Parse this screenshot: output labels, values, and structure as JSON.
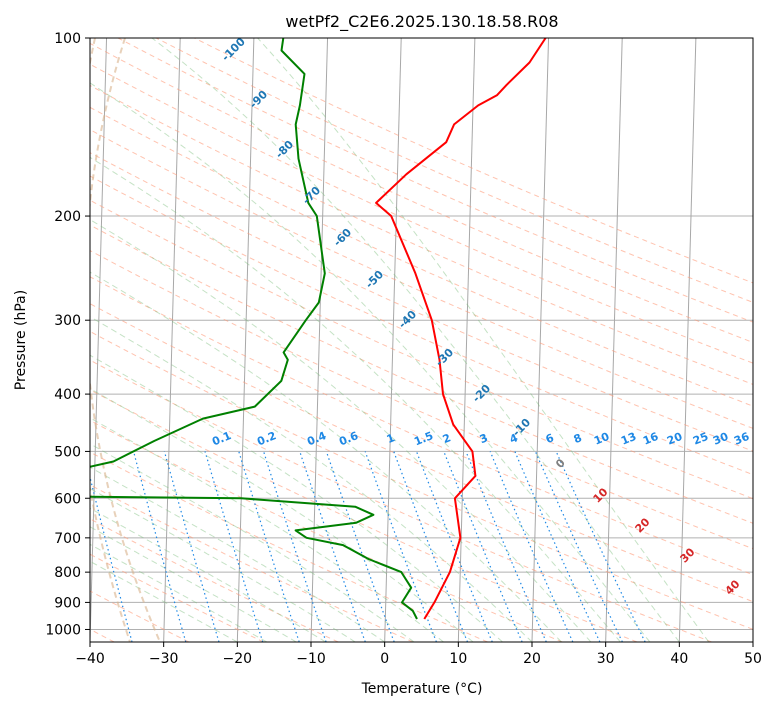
{
  "chart_data": {
    "type": "line",
    "chart_kind": "skew-t log-p",
    "title": "wetPf2_C2E6.2025.130.18.58.R08",
    "xlabel": "Temperature (°C)",
    "ylabel": "Pressure (hPa)",
    "xlim": [
      -40,
      50
    ],
    "ylim": [
      1050,
      100
    ],
    "y_scale": "log",
    "grid": true,
    "x_ticks": [
      -40,
      -30,
      -20,
      -10,
      0,
      10,
      20,
      30,
      40,
      50
    ],
    "y_ticks": [
      100,
      200,
      300,
      400,
      500,
      600,
      700,
      800,
      900,
      1000
    ],
    "series": [
      {
        "color": "#ff0000",
        "points": [
          [
            19.6,
            100
          ],
          [
            17.5,
            110
          ],
          [
            14.5,
            120
          ],
          [
            13.2,
            125
          ],
          [
            10.7,
            130
          ],
          [
            7.5,
            140
          ],
          [
            6.5,
            150
          ],
          [
            1.2,
            170
          ],
          [
            -2.8,
            190
          ],
          [
            -0.7,
            200
          ],
          [
            2.8,
            250
          ],
          [
            5.2,
            300
          ],
          [
            6.4,
            350
          ],
          [
            7.0,
            400
          ],
          [
            8.5,
            450
          ],
          [
            11.2,
            500
          ],
          [
            11.7,
            550
          ],
          [
            9.0,
            600
          ],
          [
            9.9,
            700
          ],
          [
            8.6,
            800
          ],
          [
            6.6,
            900
          ],
          [
            5.3,
            960
          ]
        ]
      },
      {
        "color": "#008000",
        "points": [
          [
            -16.0,
            100
          ],
          [
            -16.2,
            105
          ],
          [
            -13.0,
            115
          ],
          [
            -13.5,
            130
          ],
          [
            -14.0,
            140
          ],
          [
            -13.5,
            160
          ],
          [
            -12.0,
            190
          ],
          [
            -10.8,
            200
          ],
          [
            -9.5,
            250
          ],
          [
            -10.2,
            280
          ],
          [
            -11.9,
            300
          ],
          [
            -14.8,
            340
          ],
          [
            -14.2,
            350
          ],
          [
            -15.0,
            380
          ],
          [
            -18.5,
            420
          ],
          [
            -25.5,
            440
          ],
          [
            -32.0,
            480
          ],
          [
            -37.5,
            520
          ],
          [
            -49.0,
            560
          ],
          [
            -74.0,
            580
          ],
          [
            -77.0,
            590
          ],
          [
            -20.0,
            600
          ],
          [
            -4.5,
            620
          ],
          [
            -2.0,
            640
          ],
          [
            -4.3,
            660
          ],
          [
            -12.5,
            680
          ],
          [
            -11.0,
            700
          ],
          [
            -6.0,
            720
          ],
          [
            -2.5,
            760
          ],
          [
            2.0,
            800
          ],
          [
            3.4,
            850
          ],
          [
            2.2,
            900
          ],
          [
            3.7,
            930
          ],
          [
            4.3,
            960
          ]
        ]
      }
    ],
    "dry_adiabats": [
      -100,
      -90,
      -80,
      -70,
      -60,
      -50,
      -40,
      -30,
      -20,
      -10
    ],
    "moist_adiabats": [
      0,
      10,
      20,
      30,
      40
    ],
    "mixing_ratios": [
      0.1,
      0.2,
      0.4,
      0.6,
      1,
      1.5,
      2,
      3,
      4,
      6,
      8,
      10,
      13,
      16,
      20,
      25,
      30,
      36
    ]
  },
  "colors": {
    "temperature": "#ff0000",
    "dewpoint": "#008000",
    "dry_adiabat_label": "#1f77b4",
    "moist_adiabat_label": "#d62728",
    "zero_label": "#7f7f7f",
    "mixing_ratio": "#1e88e5"
  }
}
